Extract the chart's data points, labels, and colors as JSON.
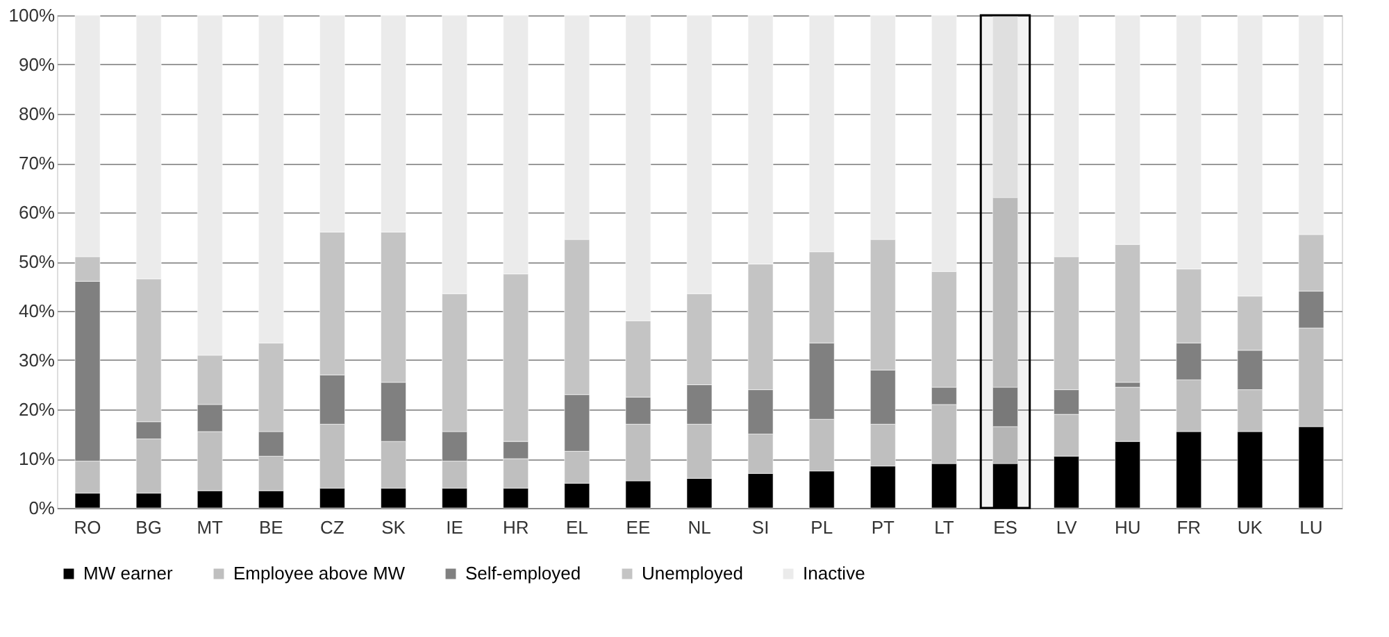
{
  "chart_data": {
    "type": "bar",
    "stacked": true,
    "categories": [
      "RO",
      "BG",
      "MT",
      "BE",
      "CZ",
      "SK",
      "IE",
      "HR",
      "EL",
      "EE",
      "NL",
      "SI",
      "PL",
      "PT",
      "LT",
      "ES",
      "LV",
      "HU",
      "FR",
      "UK",
      "LU"
    ],
    "series": [
      {
        "name": "MW earner",
        "color": "#000000",
        "values": [
          3,
          3,
          3.5,
          3.5,
          4,
          4,
          4,
          4,
          5,
          5.5,
          6,
          7,
          7.5,
          8.5,
          9,
          9,
          10.5,
          13.5,
          15.5,
          15.5,
          16.5
        ]
      },
      {
        "name": "Employee above MW",
        "color": "#bfbfbf",
        "values": [
          6.5,
          11,
          12,
          7,
          13,
          9.5,
          5.5,
          6,
          6.5,
          11.5,
          11,
          8,
          10.5,
          8.5,
          12,
          7.5,
          8.5,
          11,
          10.5,
          8.5,
          20
        ]
      },
      {
        "name": "Self-employed",
        "color": "#808080",
        "values": [
          36.5,
          3.5,
          5.5,
          5,
          10,
          12,
          6,
          3.5,
          11.5,
          5.5,
          8,
          9,
          15.5,
          11,
          3.5,
          8,
          5,
          1,
          7.5,
          8,
          7.5
        ]
      },
      {
        "name": "Unemployed",
        "color": "#c4c4c4",
        "values": [
          5,
          29,
          10,
          18,
          29,
          30.5,
          28,
          34,
          31.5,
          15.5,
          18.5,
          25.5,
          18.5,
          26.5,
          23.5,
          38.5,
          27,
          28,
          15,
          11,
          11.5
        ]
      },
      {
        "name": "Inactive",
        "color": "#ebebeb",
        "values": [
          49,
          53.5,
          69,
          66.5,
          44,
          44,
          56.5,
          52.5,
          45.5,
          62,
          56.5,
          50.5,
          48,
          45.5,
          52,
          37,
          49,
          46.5,
          51.5,
          57,
          44.5
        ]
      }
    ],
    "ylim": [
      0,
      100
    ],
    "yticks": [
      {
        "value": 0,
        "label": "0%"
      },
      {
        "value": 10,
        "label": "10%"
      },
      {
        "value": 20,
        "label": "20%"
      },
      {
        "value": 30,
        "label": "30%"
      },
      {
        "value": 40,
        "label": "40%"
      },
      {
        "value": 50,
        "label": "50%"
      },
      {
        "value": 60,
        "label": "60%"
      },
      {
        "value": 70,
        "label": "70%"
      },
      {
        "value": 80,
        "label": "80%"
      },
      {
        "value": 90,
        "label": "90%"
      },
      {
        "value": 100,
        "label": "100%"
      }
    ],
    "grid": "y",
    "legend": "bottom",
    "bands": [
      {
        "axis": "x",
        "from": "ES",
        "to": "ES",
        "color": "#000000"
      }
    ]
  }
}
